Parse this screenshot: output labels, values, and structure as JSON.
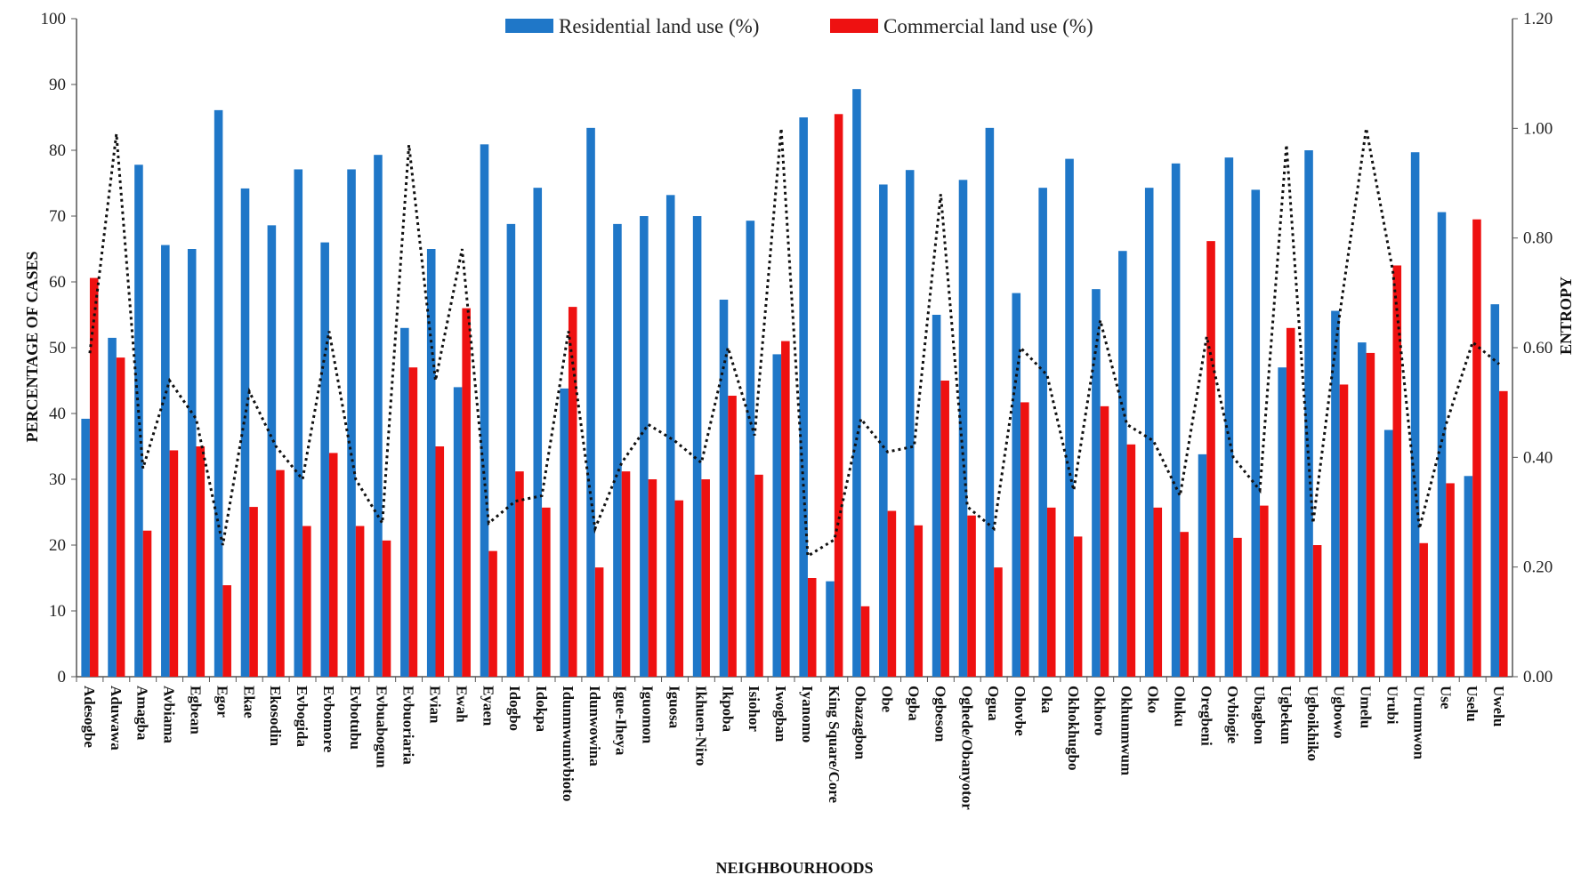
{
  "chart_data": {
    "type": "bar",
    "title": "",
    "xlabel": "NEIGHBOURHOODS",
    "ylabel": "PERCENTAGE OF  CASES",
    "y2label": "ENTROPY",
    "ylim": [
      0,
      100
    ],
    "y2lim": [
      0,
      1.2
    ],
    "yticks": [
      "0",
      "10",
      "20",
      "30",
      "40",
      "50",
      "60",
      "70",
      "80",
      "90",
      "100"
    ],
    "y2ticks": [
      "0.00",
      "0.20",
      "0.40",
      "0.60",
      "0.80",
      "1.00",
      "1.20"
    ],
    "grid": false,
    "legend_position": "top-center",
    "categories": [
      "Adesogbe",
      "Aduwawa",
      "Amagba",
      "Avbiama",
      "Egbean",
      "Egor",
      "Ekae",
      "Ekosodin",
      "Evbogida",
      "Evbomore",
      "Evbotubu",
      "Evbuabogun",
      "Evbuoriaria",
      "Evian",
      "Ewah",
      "Eyaen",
      "Idogbo",
      "Idokpa",
      "Idunmwunivbioto",
      "Idunwowina",
      "Igue-Iheya",
      "Iguomon",
      "Iguosa",
      "Ikhuen-Niro",
      "Ikpoba",
      "Isiohor",
      "Iwogban",
      "Iyanomo",
      "King Square/Core",
      "Obazagbon",
      "Obe",
      "Ogba",
      "Ogbeson",
      "Oghede/Obanyotor",
      "Ogua",
      "Ohovbe",
      "Oka",
      "Okhokhugbo",
      "Okhoro",
      "Okhunmwum",
      "Oko",
      "Oluku",
      "Oregbeni",
      "Ovbiogie",
      "Ubagbon",
      "Ugbekun",
      "Ugboikhiko",
      "Ugbowo",
      "Umelu",
      "Urubi",
      "Urunmwon",
      "Use",
      "Uselu",
      "Uwelu"
    ],
    "series": [
      {
        "name": "Residential land use (%)",
        "type": "bar",
        "axis": "left",
        "color": "#1f77c8",
        "values": [
          39.2,
          51.5,
          77.8,
          65.6,
          65.0,
          86.1,
          74.2,
          68.6,
          77.1,
          66.0,
          77.1,
          79.3,
          53.0,
          65.0,
          44.0,
          80.9,
          68.8,
          74.3,
          43.8,
          83.4,
          68.8,
          70.0,
          73.2,
          70.0,
          57.3,
          69.3,
          49.0,
          85.0,
          14.5,
          89.3,
          74.8,
          77.0,
          55.0,
          75.5,
          83.4,
          58.3,
          74.3,
          78.7,
          58.9,
          64.7,
          74.3,
          78.0,
          33.8,
          78.9,
          74.0,
          47.0,
          80.0,
          55.6,
          50.8,
          37.5,
          79.7,
          70.6,
          30.5,
          56.6
        ]
      },
      {
        "name": "Commercial land use (%)",
        "type": "bar",
        "axis": "left",
        "color": "#ee1111",
        "values": [
          60.6,
          48.5,
          22.2,
          34.4,
          35.0,
          13.9,
          25.8,
          31.4,
          22.9,
          34.0,
          22.9,
          20.7,
          47.0,
          35.0,
          56.0,
          19.1,
          31.2,
          25.7,
          56.2,
          16.6,
          31.2,
          30.0,
          26.8,
          30.0,
          42.7,
          30.7,
          51.0,
          15.0,
          85.5,
          10.7,
          25.2,
          23.0,
          45.0,
          24.5,
          16.6,
          41.7,
          25.7,
          21.3,
          41.1,
          35.3,
          25.7,
          22.0,
          66.2,
          21.1,
          26.0,
          53.0,
          20.0,
          44.4,
          49.2,
          62.5,
          20.3,
          29.4,
          69.5,
          43.4
        ]
      },
      {
        "type": "line",
        "axis": "right",
        "color": "#111111",
        "style": "dotted",
        "values": [
          0.59,
          0.99,
          0.38,
          0.54,
          0.47,
          0.24,
          0.52,
          0.42,
          0.36,
          0.63,
          0.36,
          0.28,
          0.97,
          0.54,
          0.78,
          0.28,
          0.32,
          0.33,
          0.63,
          0.27,
          0.39,
          0.46,
          0.43,
          0.39,
          0.6,
          0.44,
          1.0,
          0.22,
          0.25,
          0.47,
          0.41,
          0.42,
          0.88,
          0.31,
          0.27,
          0.6,
          0.55,
          0.34,
          0.65,
          0.46,
          0.43,
          0.33,
          0.62,
          0.4,
          0.34,
          0.97,
          0.28,
          0.66,
          1.0,
          0.74,
          0.27,
          0.46,
          0.61,
          0.57
        ]
      }
    ]
  }
}
